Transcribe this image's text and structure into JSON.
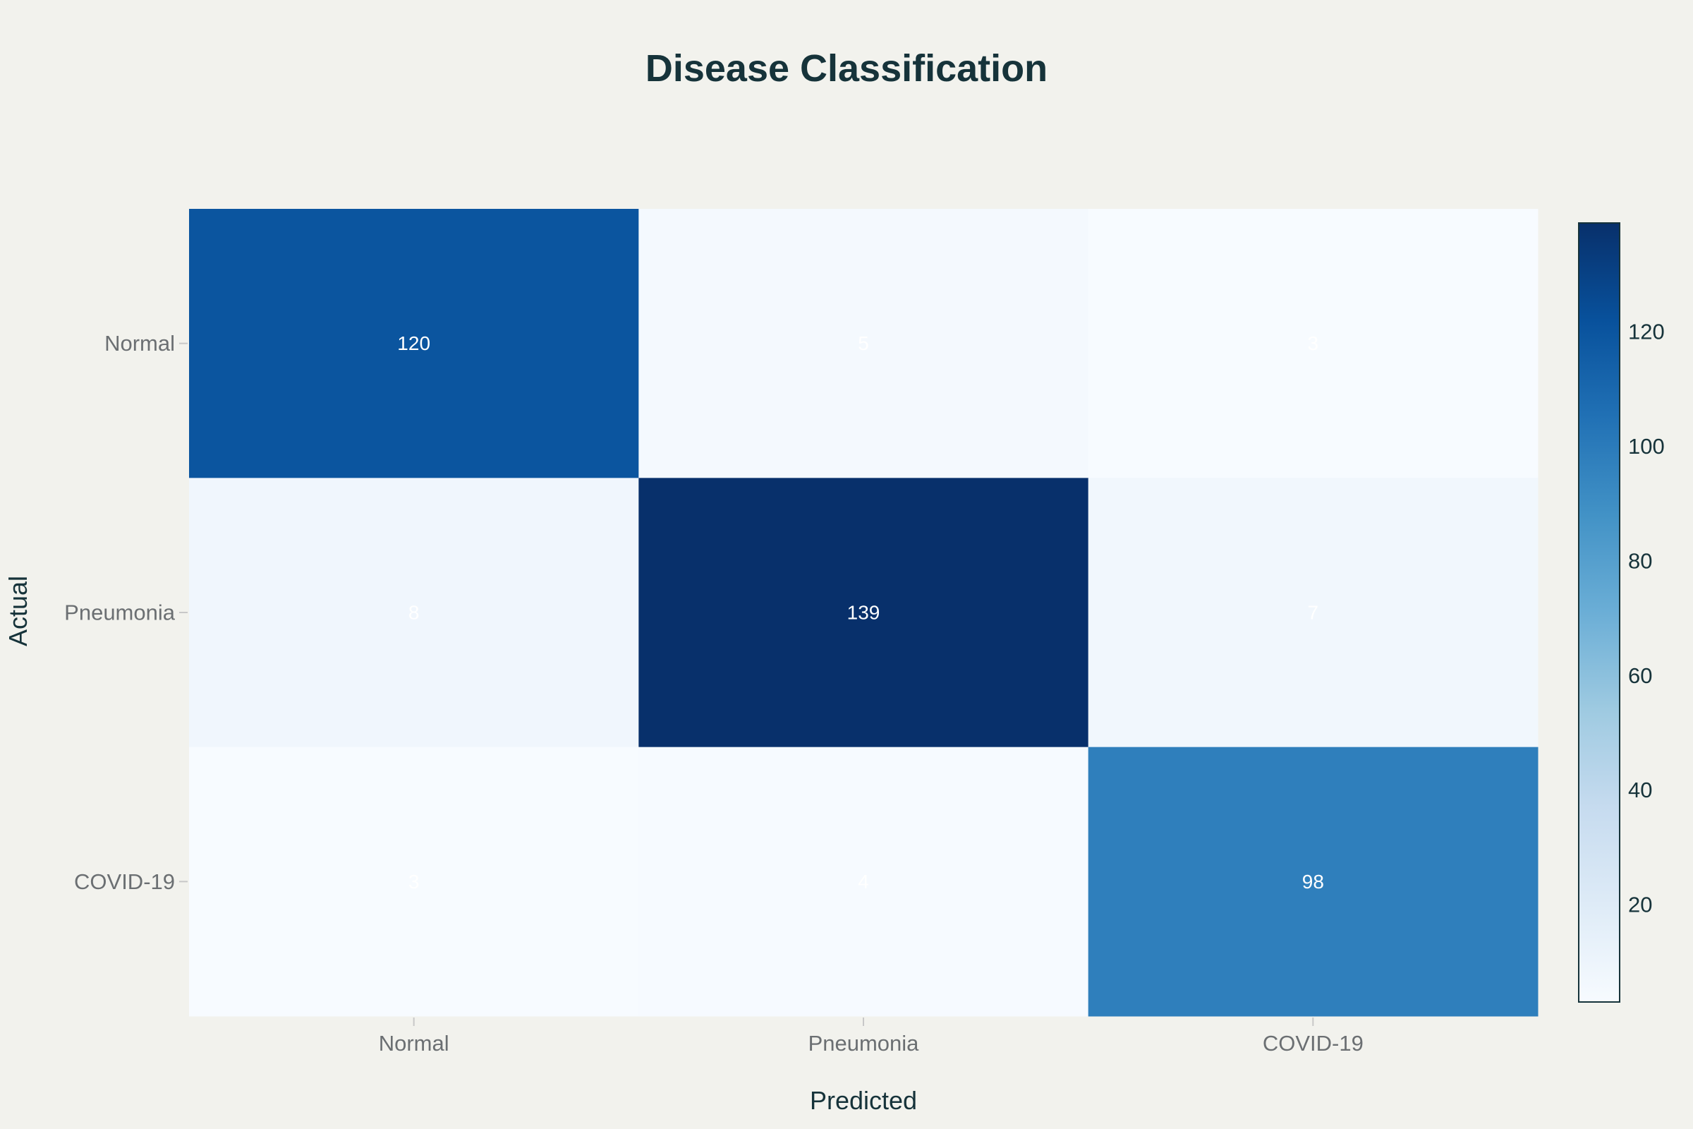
{
  "chart_data": {
    "type": "heatmap",
    "title": "Disease Classification",
    "xlabel": "Predicted",
    "ylabel": "Actual",
    "x_categories": [
      "Normal",
      "Pneumonia",
      "COVID-19"
    ],
    "y_categories": [
      "Normal",
      "Pneumonia",
      "COVID-19"
    ],
    "z": [
      [
        120,
        5,
        3
      ],
      [
        8,
        139,
        7
      ],
      [
        3,
        4,
        98
      ]
    ],
    "colorscale": "Blues",
    "zmin": 3,
    "zmax": 139,
    "colorbar_ticks": [
      20,
      40,
      60,
      80,
      100,
      120
    ],
    "show_cell_text": true,
    "cell_text_color": "#ffffff",
    "background_color": "#f2f2ed",
    "title_color": "#16333a"
  }
}
